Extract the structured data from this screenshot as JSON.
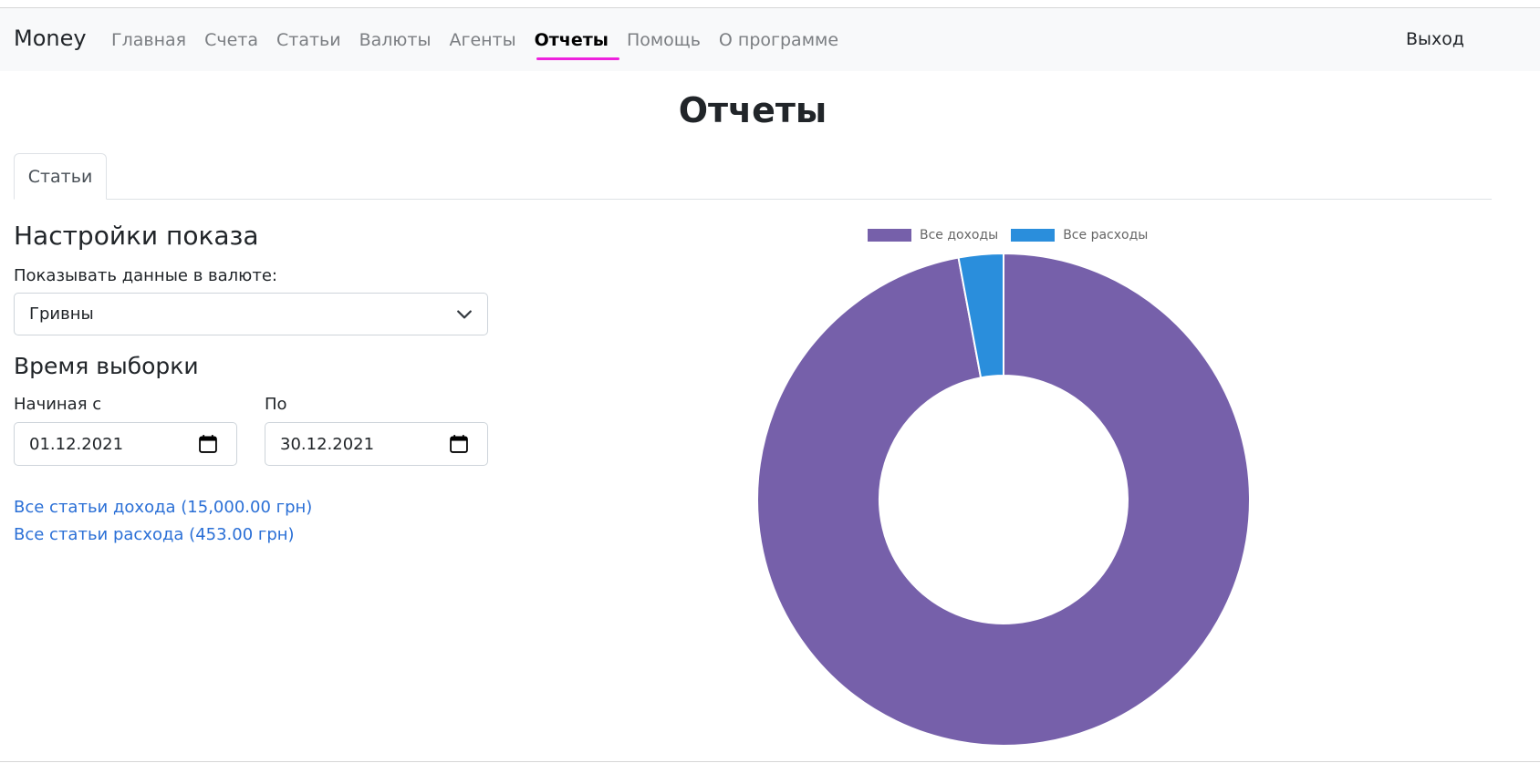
{
  "navbar": {
    "brand": "Money",
    "links": [
      {
        "label": "Главная"
      },
      {
        "label": "Счета"
      },
      {
        "label": "Статьи"
      },
      {
        "label": "Валюты"
      },
      {
        "label": "Агенты"
      },
      {
        "label": "Отчеты",
        "active": true
      },
      {
        "label": "Помощь"
      },
      {
        "label": "О программе"
      }
    ],
    "logout": "Выход",
    "active_underline_color": "#ee22dd"
  },
  "page": {
    "title": "Отчеты",
    "tab": "Статьи"
  },
  "settings": {
    "title": "Настройки показа",
    "currency_label": "Показывать данные в валюте:",
    "currency_value": "Гривны"
  },
  "period": {
    "title": "Время выборки",
    "from_label": "Начиная с",
    "from_value": "01.12.2021",
    "to_label": "По",
    "to_value": "30.12.2021"
  },
  "summary": {
    "income_link": "Все статьи дохода (15,000.00 грн)",
    "expense_link": "Все статьи расхода (453.00 грн)"
  },
  "chart_data": {
    "type": "pie",
    "variant": "doughnut",
    "categories": [
      "Все доходы",
      "Все расходы"
    ],
    "values": [
      15000,
      453
    ],
    "colors": [
      "#7660aa",
      "#2a8edc"
    ],
    "legend": "top"
  }
}
